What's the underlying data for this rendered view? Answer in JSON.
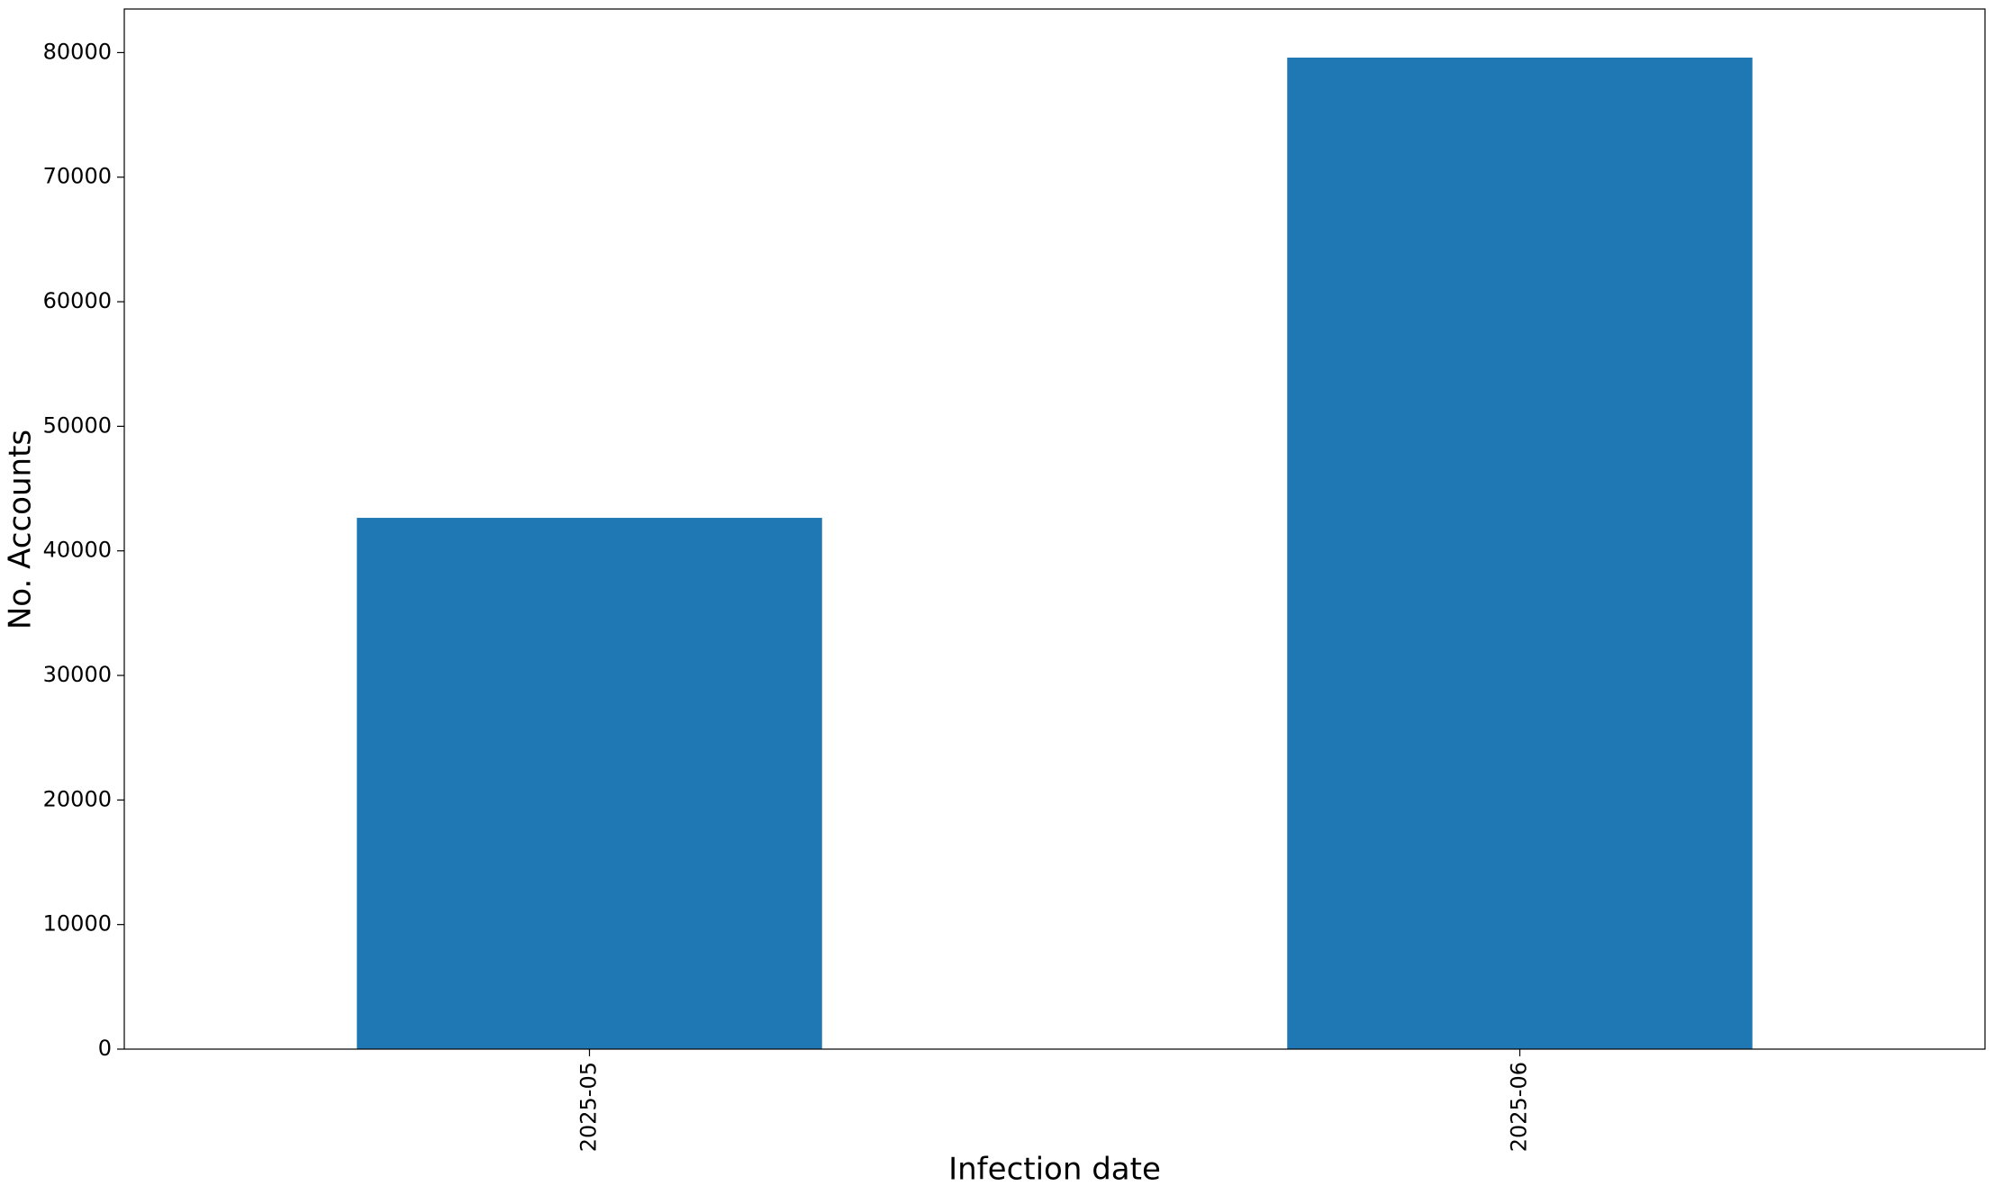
{
  "chart_data": {
    "type": "bar",
    "x_label": "Infection date",
    "y_label": "No. Accounts",
    "categories": [
      "2025-05",
      "2025-06"
    ],
    "values": [
      42650,
      79600
    ],
    "color": "#1f77b4",
    "ylim": [
      0,
      83500
    ],
    "yticks": [
      0,
      10000,
      20000,
      30000,
      40000,
      50000,
      60000,
      70000,
      80000
    ],
    "grid": false
  }
}
